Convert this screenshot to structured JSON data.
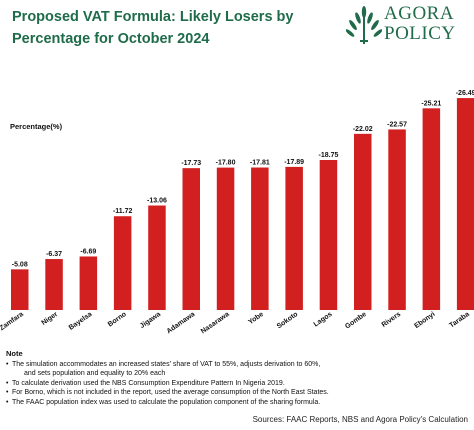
{
  "header": {
    "title": "Proposed VAT Formula: Likely Losers by Percentage for October 2024",
    "logo_line1": "AGORA",
    "logo_line2": "POLICY"
  },
  "colors": {
    "bar": "#d21f1f",
    "title": "#1f6b4a",
    "logo": "#1f6b4a"
  },
  "chart_data": {
    "type": "bar",
    "ylabel": "Percentage(%)",
    "categories": [
      "Zamfara",
      "Niger",
      "Bayelsa",
      "Borno",
      "Jigawa",
      "Adamawa",
      "Nasarawa",
      "Yobe",
      "Sokoto",
      "Lagos",
      "Gombe",
      "Rivers",
      "Ebonyi",
      "Taraba"
    ],
    "values": [
      -5.08,
      -6.37,
      -6.69,
      -11.72,
      -13.06,
      -17.73,
      -17.8,
      -17.81,
      -17.89,
      -18.75,
      -22.02,
      -22.57,
      -25.21,
      -26.49
    ],
    "value_labels": [
      "-5.08",
      "-6.37",
      "-6.69",
      "-11.72",
      "-13.06",
      "-17.73",
      "-17.80",
      "-17.81",
      "-17.89",
      "-18.75",
      "-22.02",
      "-22.57",
      "-25.21",
      "-26.49"
    ],
    "grid": false,
    "legend": "none"
  },
  "notes": {
    "title": "Note",
    "items": [
      "The simulation accommodates an increased states' share of VAT to 55%, adjusts derivation to 60%,",
      "To calculate derivation used the NBS Consumption Expenditure Pattern In Nigeria 2019.",
      "For Borno, which is not included in the report,  used the average consumption of the North East States.",
      "The FAAC population index was used to calculate the population component of the sharing formula."
    ],
    "item1_continuation": "and sets population and equality to 20% each"
  },
  "sources": "Sources: FAAC Reports, NBS and Agora Policy's Calculation"
}
